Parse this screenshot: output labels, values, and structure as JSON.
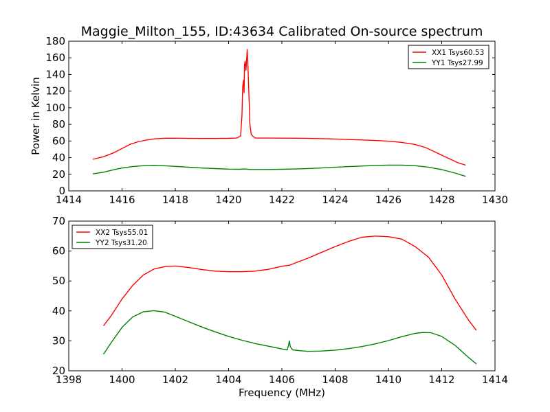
{
  "chart_data": [
    {
      "type": "line",
      "title": "Maggie_Milton_155, ID:43634 Calibrated On-source spectrum",
      "xlabel": "",
      "ylabel": "Power in Kelvin",
      "xlim": [
        1414,
        1430
      ],
      "ylim": [
        0,
        180
      ],
      "xticks": [
        "1414",
        "1416",
        "1418",
        "1420",
        "1422",
        "1424",
        "1426",
        "1428",
        "1430"
      ],
      "yticks": [
        "0",
        "20",
        "40",
        "60",
        "80",
        "100",
        "120",
        "140",
        "160",
        "180"
      ],
      "legend_position": "top-right",
      "grid": false,
      "series": [
        {
          "name": "XX1 Tsys60.53",
          "color": "#ff0000",
          "points": [
            [
              1414.9,
              38
            ],
            [
              1415.3,
              41
            ],
            [
              1415.7,
              46
            ],
            [
              1416.0,
              51
            ],
            [
              1416.3,
              56
            ],
            [
              1416.6,
              59
            ],
            [
              1416.9,
              61
            ],
            [
              1417.2,
              62.5
            ],
            [
              1417.6,
              63.3
            ],
            [
              1418.0,
              63.3
            ],
            [
              1418.5,
              63.1
            ],
            [
              1419.0,
              63.0
            ],
            [
              1419.5,
              63.0
            ],
            [
              1420.0,
              63.2
            ],
            [
              1420.3,
              63.5
            ],
            [
              1420.45,
              66
            ],
            [
              1420.5,
              90
            ],
            [
              1420.53,
              125
            ],
            [
              1420.56,
              133
            ],
            [
              1420.58,
              118
            ],
            [
              1420.6,
              152
            ],
            [
              1420.62,
              156
            ],
            [
              1420.65,
              145
            ],
            [
              1420.68,
              160
            ],
            [
              1420.7,
              170
            ],
            [
              1420.72,
              155
            ],
            [
              1420.75,
              128
            ],
            [
              1420.8,
              80
            ],
            [
              1420.85,
              68
            ],
            [
              1420.9,
              66
            ],
            [
              1421.0,
              63.6
            ],
            [
              1421.5,
              63.5
            ],
            [
              1422.0,
              63.4
            ],
            [
              1422.5,
              63.3
            ],
            [
              1423.0,
              63.1
            ],
            [
              1423.5,
              62.8
            ],
            [
              1424.0,
              62.4
            ],
            [
              1424.5,
              61.8
            ],
            [
              1425.0,
              61.3
            ],
            [
              1425.5,
              60.6
            ],
            [
              1426.0,
              59.8
            ],
            [
              1426.5,
              58.3
            ],
            [
              1427.0,
              55.8
            ],
            [
              1427.4,
              52
            ],
            [
              1427.8,
              46
            ],
            [
              1428.2,
              40
            ],
            [
              1428.6,
              34
            ],
            [
              1428.9,
              31
            ]
          ]
        },
        {
          "name": "YY1 Tsys27.99",
          "color": "#008000",
          "points": [
            [
              1414.9,
              20.5
            ],
            [
              1415.3,
              22.5
            ],
            [
              1415.7,
              25.5
            ],
            [
              1416.0,
              27.5
            ],
            [
              1416.4,
              29.2
            ],
            [
              1416.8,
              30.3
            ],
            [
              1417.2,
              30.5
            ],
            [
              1417.6,
              30.2
            ],
            [
              1418.0,
              29.5
            ],
            [
              1418.5,
              28.5
            ],
            [
              1419.0,
              27.5
            ],
            [
              1419.5,
              26.8
            ],
            [
              1420.0,
              26.2
            ],
            [
              1420.4,
              26.0
            ],
            [
              1420.6,
              26.3
            ],
            [
              1420.8,
              25.8
            ],
            [
              1421.0,
              25.8
            ],
            [
              1421.5,
              25.8
            ],
            [
              1422.0,
              26.0
            ],
            [
              1422.5,
              26.3
            ],
            [
              1423.0,
              26.9
            ],
            [
              1423.5,
              27.6
            ],
            [
              1424.0,
              28.4
            ],
            [
              1424.5,
              29.2
            ],
            [
              1425.0,
              29.9
            ],
            [
              1425.5,
              30.6
            ],
            [
              1426.0,
              31.0
            ],
            [
              1426.5,
              31.0
            ],
            [
              1427.0,
              30.3
            ],
            [
              1427.5,
              28.6
            ],
            [
              1428.0,
              25.6
            ],
            [
              1428.5,
              21.5
            ],
            [
              1428.9,
              17.5
            ]
          ]
        }
      ]
    },
    {
      "type": "line",
      "title": "",
      "xlabel": "Frequency (MHz)",
      "ylabel": "",
      "xlim": [
        1398,
        1414
      ],
      "ylim": [
        20,
        70
      ],
      "xticks": [
        "1398",
        "1400",
        "1402",
        "1404",
        "1406",
        "1408",
        "1410",
        "1412",
        "1414"
      ],
      "yticks": [
        "20",
        "30",
        "40",
        "50",
        "60",
        "70"
      ],
      "legend_position": "top-left",
      "grid": false,
      "series": [
        {
          "name": "XX2 Tsys55.01",
          "color": "#ff0000",
          "points": [
            [
              1399.3,
              35
            ],
            [
              1399.6,
              38.5
            ],
            [
              1400.0,
              44
            ],
            [
              1400.4,
              48.5
            ],
            [
              1400.8,
              52
            ],
            [
              1401.2,
              54
            ],
            [
              1401.6,
              54.8
            ],
            [
              1402.0,
              55
            ],
            [
              1402.5,
              54.5
            ],
            [
              1403.0,
              53.8
            ],
            [
              1403.5,
              53.3
            ],
            [
              1404.0,
              53.1
            ],
            [
              1404.5,
              53.1
            ],
            [
              1405.0,
              53.3
            ],
            [
              1405.5,
              53.9
            ],
            [
              1406.0,
              54.9
            ],
            [
              1406.3,
              55.3
            ],
            [
              1406.5,
              56
            ],
            [
              1407.0,
              57.7
            ],
            [
              1407.5,
              59.6
            ],
            [
              1408.0,
              61.5
            ],
            [
              1408.5,
              63.2
            ],
            [
              1409.0,
              64.6
            ],
            [
              1409.5,
              65.0
            ],
            [
              1410.0,
              64.8
            ],
            [
              1410.5,
              64
            ],
            [
              1411.0,
              61.5
            ],
            [
              1411.5,
              58
            ],
            [
              1412.0,
              52
            ],
            [
              1412.5,
              44
            ],
            [
              1413.0,
              37
            ],
            [
              1413.3,
              33.5
            ]
          ]
        },
        {
          "name": "YY2 Tsys31.20",
          "color": "#008000",
          "points": [
            [
              1399.3,
              25.5
            ],
            [
              1399.6,
              29.5
            ],
            [
              1400.0,
              34.5
            ],
            [
              1400.4,
              38
            ],
            [
              1400.8,
              39.7
            ],
            [
              1401.2,
              40.1
            ],
            [
              1401.6,
              39.6
            ],
            [
              1402.0,
              38.2
            ],
            [
              1402.5,
              36.4
            ],
            [
              1403.0,
              34.6
            ],
            [
              1403.5,
              33
            ],
            [
              1404.0,
              31.5
            ],
            [
              1404.5,
              30.2
            ],
            [
              1405.0,
              29.1
            ],
            [
              1405.5,
              28.2
            ],
            [
              1406.0,
              27.3
            ],
            [
              1406.2,
              27.0
            ],
            [
              1406.25,
              28.5
            ],
            [
              1406.28,
              30
            ],
            [
              1406.32,
              28
            ],
            [
              1406.4,
              27.0
            ],
            [
              1406.7,
              26.7
            ],
            [
              1407.0,
              26.5
            ],
            [
              1407.5,
              26.6
            ],
            [
              1408.0,
              26.9
            ],
            [
              1408.5,
              27.4
            ],
            [
              1409.0,
              28.1
            ],
            [
              1409.5,
              29
            ],
            [
              1410.0,
              30.1
            ],
            [
              1410.5,
              31.4
            ],
            [
              1411.0,
              32.5
            ],
            [
              1411.3,
              32.8
            ],
            [
              1411.6,
              32.7
            ],
            [
              1412.0,
              31.5
            ],
            [
              1412.5,
              28.5
            ],
            [
              1413.0,
              24.5
            ],
            [
              1413.3,
              22.3
            ]
          ]
        }
      ]
    }
  ]
}
